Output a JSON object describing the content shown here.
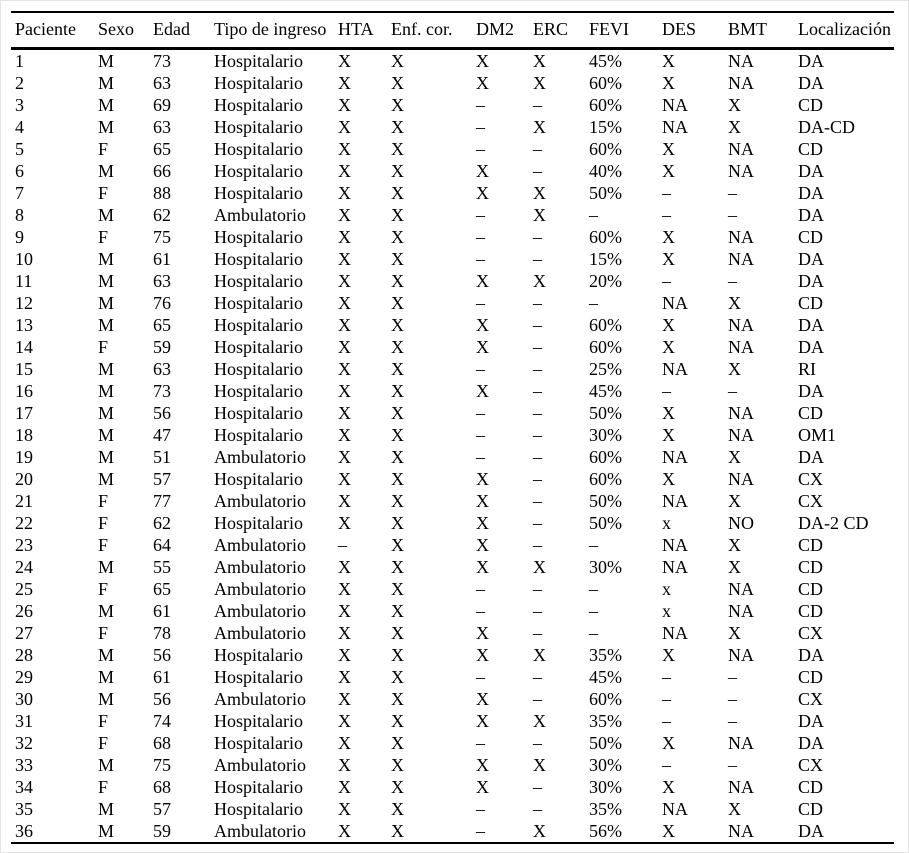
{
  "colors": {
    "rule": "#000000",
    "text": "#000000",
    "background": "#ffffff",
    "frame": "#e4e4e4"
  },
  "table": {
    "columns": [
      "Paciente",
      "Sexo",
      "Edad",
      "Tipo de ingreso",
      "HTA",
      "Enf. cor.",
      "DM2",
      "ERC",
      "FEVI",
      "DES",
      "BMT",
      "Localización"
    ],
    "rows": [
      [
        "1",
        "M",
        "73",
        "Hospitalario",
        "X",
        "X",
        "X",
        "X",
        "45%",
        "X",
        "NA",
        "DA"
      ],
      [
        "2",
        "M",
        "63",
        "Hospitalario",
        "X",
        "X",
        "X",
        "X",
        "60%",
        "X",
        "NA",
        "DA"
      ],
      [
        "3",
        "M",
        "69",
        "Hospitalario",
        "X",
        "X",
        "–",
        "–",
        "60%",
        "NA",
        "X",
        "CD"
      ],
      [
        "4",
        "M",
        "63",
        "Hospitalario",
        "X",
        "X",
        "–",
        "X",
        "15%",
        "NA",
        "X",
        "DA-CD"
      ],
      [
        "5",
        "F",
        "65",
        "Hospitalario",
        "X",
        "X",
        "–",
        "–",
        "60%",
        "X",
        "NA",
        "CD"
      ],
      [
        "6",
        "M",
        "66",
        "Hospitalario",
        "X",
        "X",
        "X",
        "–",
        "40%",
        "X",
        "NA",
        "DA"
      ],
      [
        "7",
        "F",
        "88",
        "Hospitalario",
        "X",
        "X",
        "X",
        "X",
        "50%",
        "–",
        "–",
        "DA"
      ],
      [
        "8",
        "M",
        "62",
        "Ambulatorio",
        "X",
        "X",
        "–",
        "X",
        "–",
        "–",
        "–",
        "DA"
      ],
      [
        "9",
        "F",
        "75",
        "Hospitalario",
        "X",
        "X",
        "–",
        "–",
        "60%",
        "X",
        "NA",
        "CD"
      ],
      [
        "10",
        "M",
        "61",
        "Hospitalario",
        "X",
        "X",
        "–",
        "–",
        "15%",
        "X",
        "NA",
        "DA"
      ],
      [
        "11",
        "M",
        "63",
        "Hospitalario",
        "X",
        "X",
        "X",
        "X",
        "20%",
        "–",
        "–",
        "DA"
      ],
      [
        "12",
        "M",
        "76",
        "Hospitalario",
        "X",
        "X",
        "–",
        "–",
        "–",
        "NA",
        "X",
        "CD"
      ],
      [
        "13",
        "M",
        "65",
        "Hospitalario",
        "X",
        "X",
        "X",
        "–",
        "60%",
        "X",
        "NA",
        "DA"
      ],
      [
        "14",
        "F",
        "59",
        "Hospitalario",
        "X",
        "X",
        "X",
        "–",
        "60%",
        "X",
        "NA",
        "DA"
      ],
      [
        "15",
        "M",
        "63",
        "Hospitalario",
        "X",
        "X",
        "–",
        "–",
        "25%",
        "NA",
        "X",
        "RI"
      ],
      [
        "16",
        "M",
        "73",
        "Hospitalario",
        "X",
        "X",
        "X",
        "–",
        "45%",
        "–",
        "–",
        "DA"
      ],
      [
        "17",
        "M",
        "56",
        "Hospitalario",
        "X",
        "X",
        "–",
        "–",
        "50%",
        "X",
        "NA",
        "CD"
      ],
      [
        "18",
        "M",
        "47",
        "Hospitalario",
        "X",
        "X",
        "–",
        "–",
        "30%",
        "X",
        "NA",
        "OM1"
      ],
      [
        "19",
        "M",
        "51",
        "Ambulatorio",
        "X",
        "X",
        "–",
        "–",
        "60%",
        "NA",
        "X",
        "DA"
      ],
      [
        "20",
        "M",
        "57",
        "Hospitalario",
        "X",
        "X",
        "X",
        "–",
        "60%",
        "X",
        "NA",
        "CX"
      ],
      [
        "21",
        "F",
        "77",
        "Ambulatorio",
        "X",
        "X",
        "X",
        "–",
        "50%",
        "NA",
        "X",
        "CX"
      ],
      [
        "22",
        "F",
        "62",
        "Hospitalario",
        "X",
        "X",
        "X",
        "–",
        "50%",
        "x",
        "NO",
        "DA-2 CD"
      ],
      [
        "23",
        "F",
        "64",
        "Ambulatorio",
        "–",
        "X",
        "X",
        "–",
        "–",
        "NA",
        "X",
        "CD"
      ],
      [
        "24",
        "M",
        "55",
        "Ambulatorio",
        "X",
        "X",
        "X",
        "X",
        "30%",
        "NA",
        "X",
        "CD"
      ],
      [
        "25",
        "F",
        "65",
        "Ambulatorio",
        "X",
        "X",
        "–",
        "–",
        "–",
        "x",
        "NA",
        "CD"
      ],
      [
        "26",
        "M",
        "61",
        "Ambulatorio",
        "X",
        "X",
        "–",
        "–",
        "–",
        "x",
        "NA",
        "CD"
      ],
      [
        "27",
        "F",
        "78",
        "Ambulatorio",
        "X",
        "X",
        "X",
        "–",
        "–",
        "NA",
        "X",
        "CX"
      ],
      [
        "28",
        "M",
        "56",
        "Hospitalario",
        "X",
        "X",
        "X",
        "X",
        "35%",
        "X",
        "NA",
        "DA"
      ],
      [
        "29",
        "M",
        "61",
        "Hospitalario",
        "X",
        "X",
        "–",
        "–",
        "45%",
        "–",
        "–",
        "CD"
      ],
      [
        "30",
        "M",
        "56",
        "Ambulatorio",
        "X",
        "X",
        "X",
        "–",
        "60%",
        "–",
        "–",
        "CX"
      ],
      [
        "31",
        "F",
        "74",
        "Hospitalario",
        "X",
        "X",
        "X",
        "X",
        "35%",
        "–",
        "–",
        "DA"
      ],
      [
        "32",
        "F",
        "68",
        "Hospitalario",
        "X",
        "X",
        "–",
        "–",
        "50%",
        "X",
        "NA",
        "DA"
      ],
      [
        "33",
        "M",
        "75",
        "Ambulatorio",
        "X",
        "X",
        "X",
        "X",
        "30%",
        "–",
        "–",
        "CX"
      ],
      [
        "34",
        "F",
        "68",
        "Hospitalario",
        "X",
        "X",
        "X",
        "–",
        "30%",
        "X",
        "NA",
        "CD"
      ],
      [
        "35",
        "M",
        "57",
        "Hospitalario",
        "X",
        "X",
        "–",
        "–",
        "35%",
        "NA",
        "X",
        "CD"
      ],
      [
        "36",
        "M",
        "59",
        "Ambulatorio",
        "X",
        "X",
        "–",
        "X",
        "56%",
        "X",
        "NA",
        "DA"
      ]
    ]
  }
}
